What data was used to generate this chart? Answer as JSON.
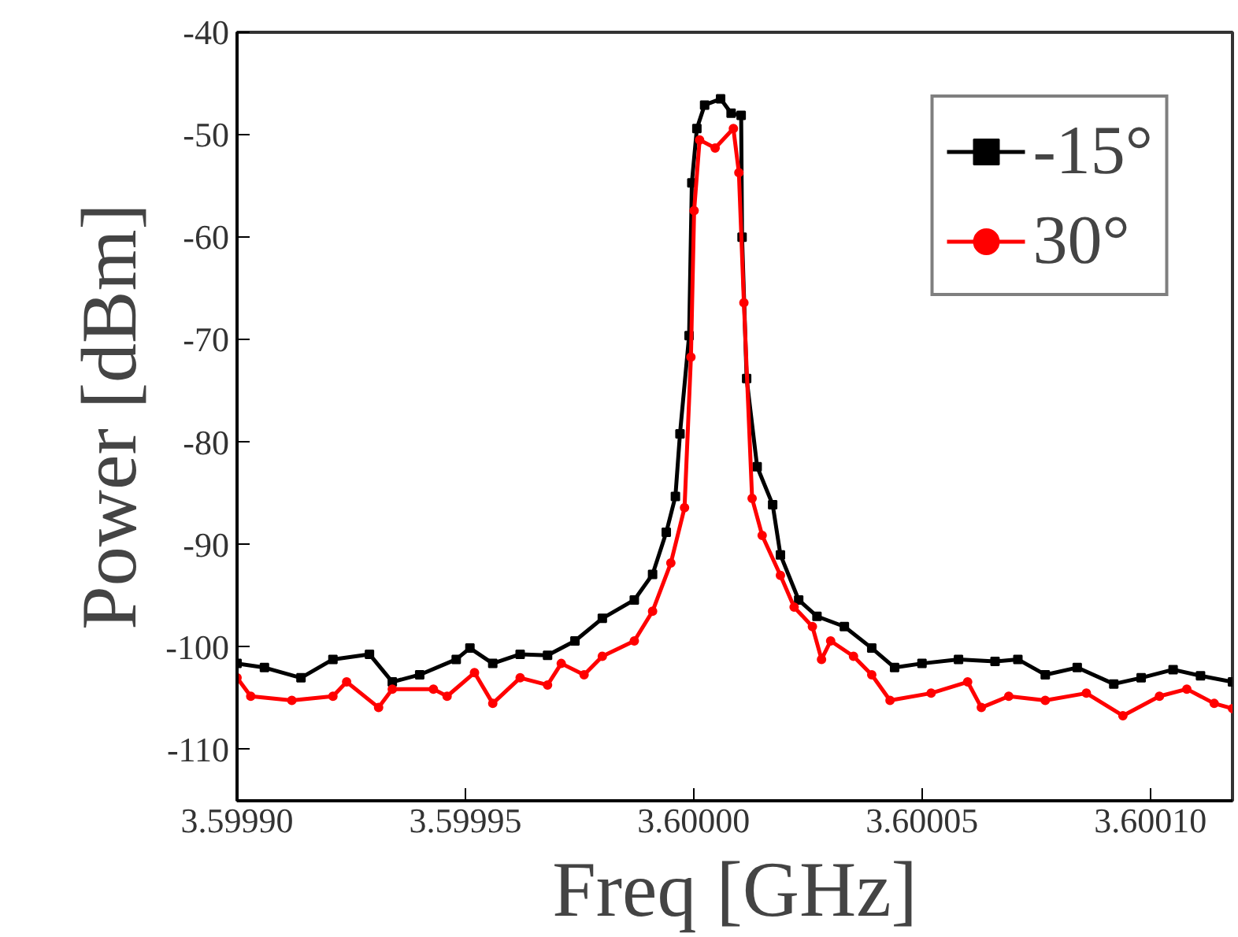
{
  "chart_data": {
    "type": "line",
    "xlabel": "Freq [GHz]",
    "ylabel": "Power [dBm]",
    "xlim": [
      3.5999,
      3.600118
    ],
    "ylim": [
      -115,
      -40
    ],
    "xticks": [
      {
        "value": 3.5999,
        "label": "3.59990"
      },
      {
        "value": 3.59995,
        "label": "3.59995"
      },
      {
        "value": 3.6,
        "label": "3.60000"
      },
      {
        "value": 3.60005,
        "label": "3.60005"
      },
      {
        "value": 3.6001,
        "label": "3.60010"
      }
    ],
    "yticks": [
      -40,
      -50,
      -60,
      -70,
      -80,
      -90,
      -100,
      -110
    ],
    "legend": "top right",
    "grid": false,
    "line_style": "solid",
    "series": [
      {
        "name": "-15°",
        "color": "#000000",
        "marker": "square",
        "x": [
          3.5999,
          3.599906,
          3.599914,
          3.599921,
          3.599929,
          3.599934,
          3.59994,
          3.599948,
          3.599951,
          3.599956,
          3.599962,
          3.599968,
          3.599974,
          3.59998,
          3.599987,
          3.599991,
          3.599994,
          3.599996,
          3.599997,
          3.599999,
          3.5999996,
          3.6000007,
          3.6000024,
          3.6000059,
          3.6000082,
          3.6000104,
          3.6000106,
          3.6000116,
          3.6000139,
          3.6000173,
          3.600019,
          3.600023,
          3.600027,
          3.600033,
          3.600039,
          3.600044,
          3.60005,
          3.600058,
          3.600066,
          3.600071,
          3.600077,
          3.600084,
          3.600092,
          3.600098,
          3.600105,
          3.600111,
          3.600118
        ],
        "values": [
          -101.6,
          -102,
          -103,
          -101.2,
          -100.7,
          -103.4,
          -102.7,
          -101.2,
          -100.1,
          -101.6,
          -100.7,
          -100.8,
          -99.4,
          -97.2,
          -95.4,
          -92.9,
          -88.8,
          -85.3,
          -79.2,
          -69.6,
          -54.7,
          -49.4,
          -47.1,
          -46.5,
          -47.9,
          -48.1,
          -60,
          -73.8,
          -82.4,
          -86.1,
          -91,
          -95.4,
          -97,
          -98,
          -100.1,
          -102,
          -101.6,
          -101.2,
          -101.4,
          -101.2,
          -102.7,
          -102,
          -103.6,
          -103,
          -102.2,
          -102.8,
          -103.4
        ]
      },
      {
        "name": "30°",
        "color": "#ff0000",
        "marker": "circle",
        "x": [
          3.5999,
          3.599903,
          3.599912,
          3.599921,
          3.599924,
          3.599931,
          3.599934,
          3.599943,
          3.599946,
          3.599952,
          3.599956,
          3.599962,
          3.599968,
          3.599971,
          3.599976,
          3.59998,
          3.599987,
          3.599991,
          3.599995,
          3.599998,
          3.5999994,
          3.6000001,
          3.6000013,
          3.6000047,
          3.6000087,
          3.6000099,
          3.600011,
          3.6000128,
          3.600015,
          3.600019,
          3.600022,
          3.600026,
          3.600028,
          3.60003,
          3.600035,
          3.600039,
          3.600043,
          3.600052,
          3.60006,
          3.600063,
          3.600069,
          3.600077,
          3.600086,
          3.600094,
          3.600102,
          3.600108,
          3.600114,
          3.600118
        ],
        "values": [
          -103,
          -104.8,
          -105.2,
          -104.8,
          -103.4,
          -105.9,
          -104.1,
          -104.1,
          -104.8,
          -102.5,
          -105.5,
          -103,
          -103.7,
          -101.6,
          -102.7,
          -100.9,
          -99.4,
          -96.5,
          -91.8,
          -86.4,
          -71.7,
          -57.4,
          -50.5,
          -51.3,
          -49.4,
          -53.7,
          -66.4,
          -85.5,
          -89.1,
          -93,
          -96.1,
          -98,
          -101.2,
          -99.4,
          -100.9,
          -102.7,
          -105.2,
          -104.5,
          -103.4,
          -105.9,
          -104.8,
          -105.2,
          -104.5,
          -106.7,
          -104.8,
          -104.1,
          -105.5,
          -106
        ]
      }
    ]
  }
}
